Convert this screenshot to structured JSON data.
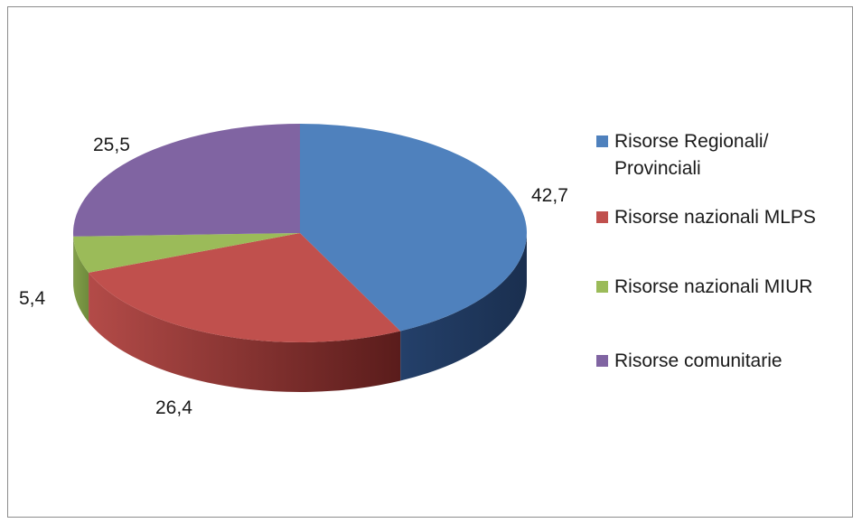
{
  "chart_data": {
    "type": "pie",
    "categories": [
      "Risorse Regionali/ Provinciali",
      "Risorse nazionali MLPS",
      "Risorse nazionali MIUR",
      "Risorse comunitarie"
    ],
    "values": [
      42.7,
      26.4,
      5.4,
      25.5
    ],
    "value_labels": [
      "42,7",
      "26,4",
      "5,4",
      "25,5"
    ],
    "colors": [
      "#4f81bd",
      "#c0504d",
      "#9bbb59",
      "#8064a2"
    ],
    "legend_position": "right",
    "style": "3d"
  },
  "legend": {
    "items": [
      {
        "label": "Risorse Regionali/ Provinciali",
        "color": "#4f81bd"
      },
      {
        "label": "Risorse nazionali MLPS",
        "color": "#c0504d"
      },
      {
        "label": "Risorse nazionali MIUR",
        "color": "#9bbb59"
      },
      {
        "label": "Risorse comunitarie",
        "color": "#8064a2"
      }
    ]
  }
}
